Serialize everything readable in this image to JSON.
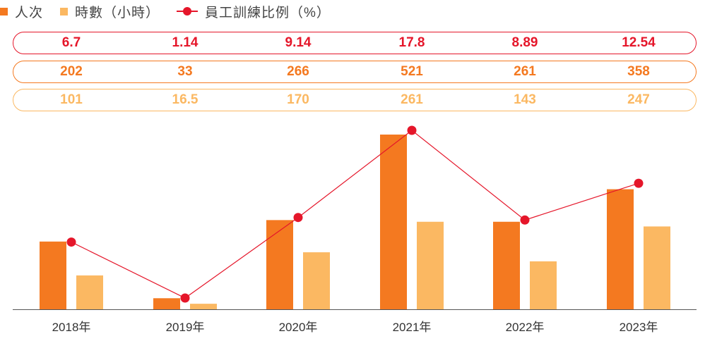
{
  "legend": {
    "people_label": "人次",
    "hours_label": "時數（小時）",
    "ratio_label": "員工訓練比例（%）"
  },
  "colors": {
    "people": "#f47920",
    "hours": "#fbb862",
    "ratio": "#e5162a",
    "axis": "#555555"
  },
  "chart_data": {
    "type": "bar",
    "categories": [
      "2018年",
      "2019年",
      "2020年",
      "2021年",
      "2022年",
      "2023年"
    ],
    "series": [
      {
        "name": "人次",
        "type": "bar",
        "values": [
          202,
          33,
          266,
          521,
          261,
          358
        ]
      },
      {
        "name": "時數（小時）",
        "type": "bar",
        "values": [
          101,
          16.5,
          170,
          261,
          143,
          247
        ]
      },
      {
        "name": "員工訓練比例（%）",
        "type": "line",
        "values": [
          6.7,
          1.14,
          9.14,
          17.8,
          8.89,
          12.54
        ]
      }
    ],
    "table_rows": [
      {
        "series": "員工訓練比例（%）",
        "values": [
          "6.7",
          "1.14",
          "9.14",
          "17.8",
          "8.89",
          "12.54"
        ]
      },
      {
        "series": "人次",
        "values": [
          "202",
          "33",
          "266",
          "521",
          "261",
          "358"
        ]
      },
      {
        "series": "時數（小時）",
        "values": [
          "101",
          "16.5",
          "170",
          "261",
          "143",
          "247"
        ]
      }
    ],
    "legend_position": "top-left",
    "grid": false
  }
}
